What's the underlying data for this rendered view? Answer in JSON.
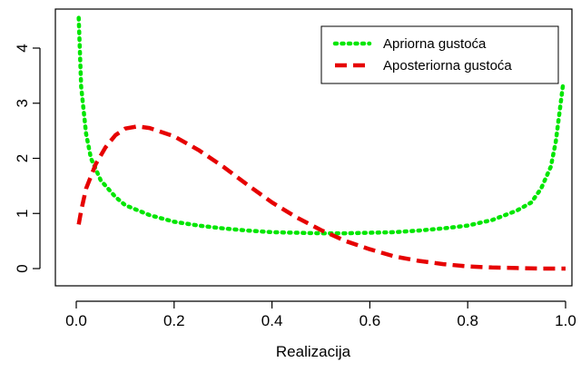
{
  "chart_data": {
    "type": "line",
    "title": "",
    "xlabel": "Realizacija",
    "ylabel": "",
    "xlim": [
      0,
      1
    ],
    "ylim": [
      0,
      4.6
    ],
    "x_ticks": [
      "0.0",
      "0.2",
      "0.4",
      "0.6",
      "0.8",
      "1.0"
    ],
    "y_ticks": [
      "0",
      "1",
      "2",
      "3",
      "4"
    ],
    "grid": false,
    "legend_position": "top-right",
    "series": [
      {
        "name": "Apriorna gustoća",
        "color": "#00e600",
        "line_style": "dotted",
        "points": [
          [
            0.005,
            4.55
          ],
          [
            0.01,
            3.3
          ],
          [
            0.02,
            2.45
          ],
          [
            0.03,
            2.0
          ],
          [
            0.05,
            1.6
          ],
          [
            0.08,
            1.3
          ],
          [
            0.1,
            1.15
          ],
          [
            0.15,
            0.97
          ],
          [
            0.2,
            0.85
          ],
          [
            0.25,
            0.78
          ],
          [
            0.3,
            0.73
          ],
          [
            0.35,
            0.69
          ],
          [
            0.4,
            0.66
          ],
          [
            0.45,
            0.65
          ],
          [
            0.5,
            0.64
          ],
          [
            0.55,
            0.64
          ],
          [
            0.6,
            0.65
          ],
          [
            0.65,
            0.66
          ],
          [
            0.7,
            0.69
          ],
          [
            0.75,
            0.73
          ],
          [
            0.8,
            0.78
          ],
          [
            0.85,
            0.88
          ],
          [
            0.9,
            1.05
          ],
          [
            0.93,
            1.2
          ],
          [
            0.95,
            1.45
          ],
          [
            0.97,
            1.85
          ],
          [
            0.98,
            2.3
          ],
          [
            0.99,
            3.0
          ],
          [
            0.995,
            3.35
          ]
        ]
      },
      {
        "name": "Aposteriorna gustoća",
        "color": "#e60000",
        "line_style": "dashed",
        "points": [
          [
            0.005,
            0.8
          ],
          [
            0.01,
            1.05
          ],
          [
            0.02,
            1.45
          ],
          [
            0.04,
            1.9
          ],
          [
            0.06,
            2.2
          ],
          [
            0.08,
            2.42
          ],
          [
            0.1,
            2.54
          ],
          [
            0.125,
            2.58
          ],
          [
            0.15,
            2.55
          ],
          [
            0.2,
            2.4
          ],
          [
            0.25,
            2.15
          ],
          [
            0.3,
            1.85
          ],
          [
            0.35,
            1.52
          ],
          [
            0.4,
            1.2
          ],
          [
            0.45,
            0.93
          ],
          [
            0.5,
            0.7
          ],
          [
            0.55,
            0.5
          ],
          [
            0.6,
            0.35
          ],
          [
            0.65,
            0.22
          ],
          [
            0.7,
            0.14
          ],
          [
            0.75,
            0.08
          ],
          [
            0.8,
            0.04
          ],
          [
            0.85,
            0.02
          ],
          [
            0.9,
            0.01
          ],
          [
            0.95,
            0.0
          ],
          [
            1.0,
            0.0
          ]
        ]
      }
    ]
  }
}
